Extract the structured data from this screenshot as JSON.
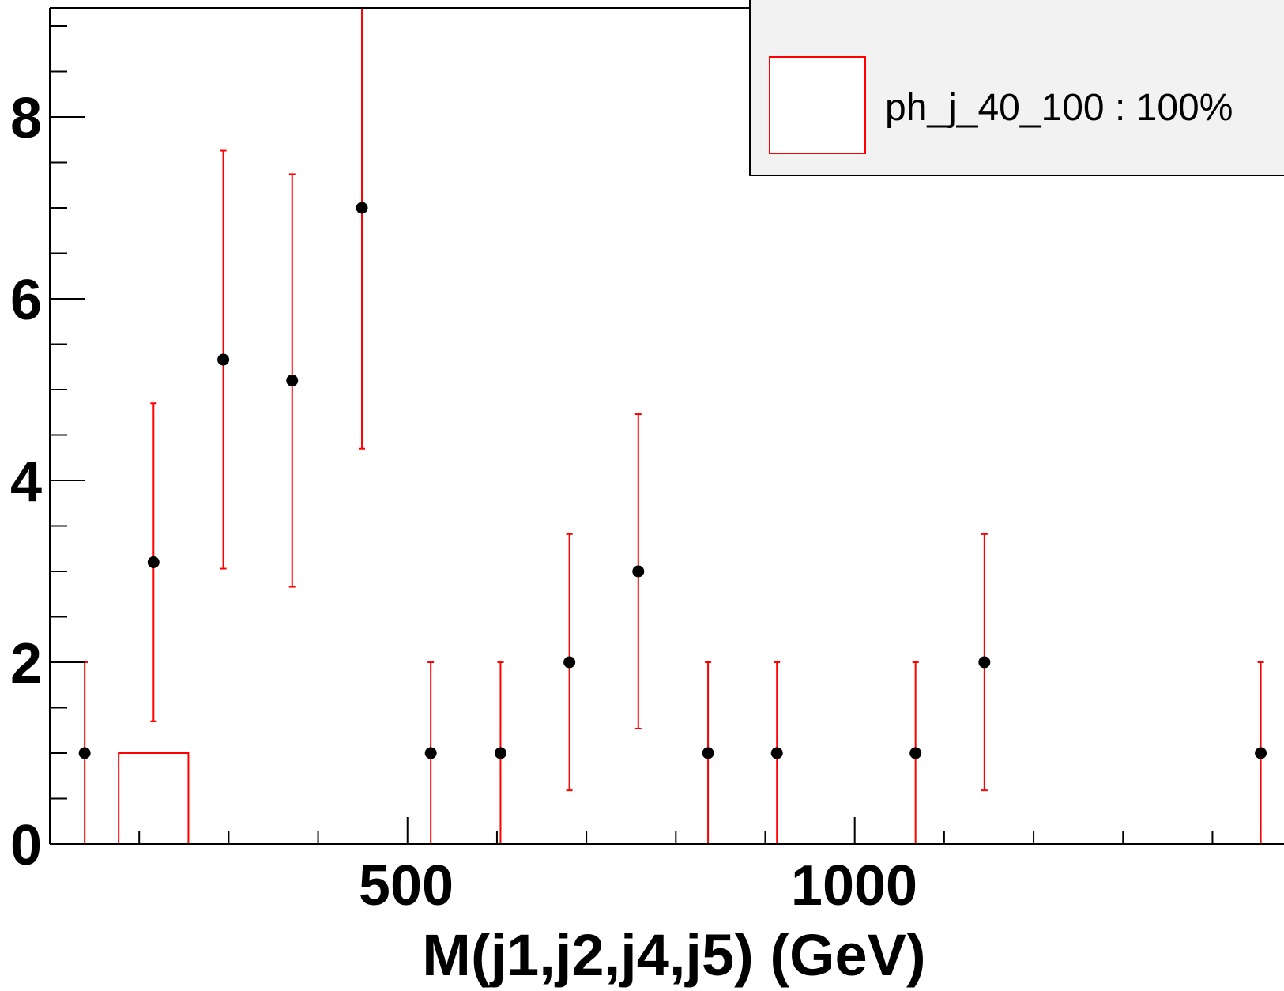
{
  "chart_data": {
    "type": "scatter",
    "xlabel": "M(j1,j2,j4,j5) (GeV)",
    "ylabel": "",
    "xlim": [
      100,
      1480
    ],
    "ylim": [
      0,
      9.2
    ],
    "x_tick_labels": [
      "500",
      "1000"
    ],
    "y_tick_labels": [
      "0",
      "2",
      "4",
      "6",
      "8"
    ],
    "grid": false,
    "legend": {
      "placement": "top-right",
      "entries": [
        {
          "label": "ph_j_40_100 : 100%",
          "color": "#ff0000"
        }
      ]
    },
    "series": [
      {
        "kind": "points-with-errors",
        "color": "#000000",
        "error_color": "#ff0000",
        "points": [
          {
            "x": 139,
            "y": 1,
            "err_low": 1,
            "err_high": 1
          },
          {
            "x": 216,
            "y": 3.1,
            "err_low": 1.75,
            "err_high": 1.75
          },
          {
            "x": 294,
            "y": 5.33,
            "err_low": 2.3,
            "err_high": 2.3
          },
          {
            "x": 371,
            "y": 5.1,
            "err_low": 2.27,
            "err_high": 2.27
          },
          {
            "x": 449,
            "y": 7,
            "err_low": 2.65,
            "err_high": 2.65
          },
          {
            "x": 526,
            "y": 1,
            "err_low": 1,
            "err_high": 1
          },
          {
            "x": 604,
            "y": 1,
            "err_low": 1,
            "err_high": 1
          },
          {
            "x": 681,
            "y": 2,
            "err_low": 1.41,
            "err_high": 1.41
          },
          {
            "x": 758,
            "y": 3,
            "err_low": 1.73,
            "err_high": 1.73
          },
          {
            "x": 836,
            "y": 1,
            "err_low": 1,
            "err_high": 1
          },
          {
            "x": 913,
            "y": 1,
            "err_low": 1,
            "err_high": 1
          },
          {
            "x": 1068,
            "y": 1,
            "err_low": 1,
            "err_high": 1
          },
          {
            "x": 1145,
            "y": 2,
            "err_low": 1.41,
            "err_high": 1.41
          },
          {
            "x": 1454,
            "y": 1,
            "err_low": 1,
            "err_high": 1
          }
        ]
      },
      {
        "kind": "histogram",
        "name": "ph_j_40_100 : 100%",
        "color": "#ff0000",
        "bins": [
          {
            "x_low": 177,
            "x_high": 255,
            "y": 1
          }
        ]
      }
    ]
  }
}
